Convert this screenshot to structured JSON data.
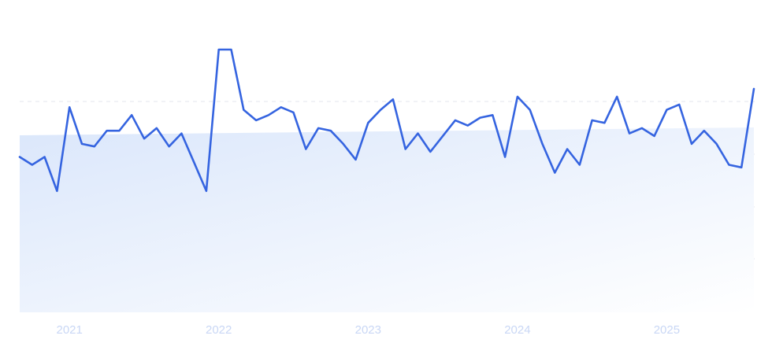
{
  "chart_data": {
    "type": "line",
    "title": "",
    "xlabel": "",
    "ylabel": "",
    "x_tick_labels": [
      "2021",
      "2022",
      "2023",
      "2024",
      "2025"
    ],
    "x_range": [
      "2020-09",
      "2025-08"
    ],
    "ylim": [
      0,
      100
    ],
    "grid": "horizontal dashed",
    "colors": {
      "line": "#3564e0",
      "area_start": "#dbe7fb",
      "area_end": "#ffffff",
      "grid": "#e3e6ee"
    },
    "series": [
      {
        "x": [
          "2020-09",
          "2020-10",
          "2020-11",
          "2020-12",
          "2021-01",
          "2021-02",
          "2021-03",
          "2021-04",
          "2021-05",
          "2021-06",
          "2021-07",
          "2021-08",
          "2021-09",
          "2021-10",
          "2021-11",
          "2021-12",
          "2022-01",
          "2022-02",
          "2022-03",
          "2022-04",
          "2022-05",
          "2022-06",
          "2022-07",
          "2022-08",
          "2022-09",
          "2022-10",
          "2022-11",
          "2022-12",
          "2023-01",
          "2023-02",
          "2023-03",
          "2023-04",
          "2023-05",
          "2023-06",
          "2023-07",
          "2023-08",
          "2023-09",
          "2023-10",
          "2023-11",
          "2023-12",
          "2024-01",
          "2024-02",
          "2024-03",
          "2024-04",
          "2024-05",
          "2024-06",
          "2024-07",
          "2024-08",
          "2024-09",
          "2024-10",
          "2024-11",
          "2024-12",
          "2025-01",
          "2025-02",
          "2025-03",
          "2025-04",
          "2025-05",
          "2025-06",
          "2025-07",
          "2025-08"
        ],
        "values": [
          59,
          56,
          59,
          46,
          78,
          64,
          63,
          69,
          69,
          75,
          66,
          70,
          63,
          68,
          57,
          46,
          100,
          100,
          77,
          73,
          75,
          78,
          76,
          62,
          70,
          69,
          64,
          58,
          72,
          77,
          81,
          62,
          68,
          61,
          67,
          73,
          71,
          74,
          75,
          59,
          82,
          77,
          64,
          53,
          62,
          56,
          73,
          72,
          82,
          68,
          70,
          67,
          77,
          79,
          64,
          69,
          64,
          56,
          55,
          85
        ]
      }
    ]
  }
}
